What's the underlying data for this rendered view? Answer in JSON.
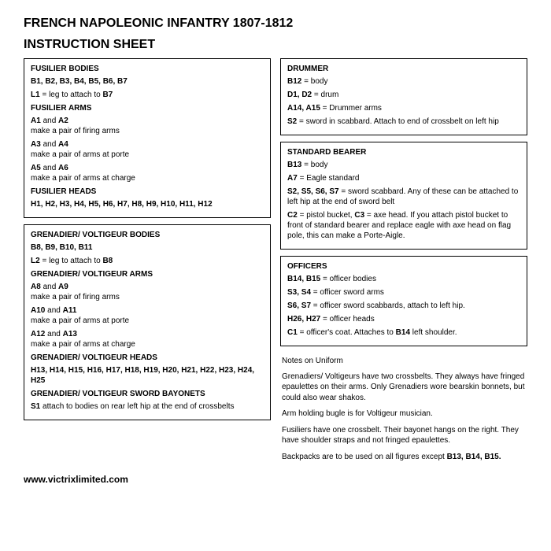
{
  "title1": "FRENCH NAPOLEONIC INFANTRY 1807-1812",
  "title2": "INSTRUCTION SHEET",
  "box1": {
    "h1": "FUSILIER BODIES",
    "p1": "B1, B2, B3, B4, B5, B6, B7",
    "p2a": "L1",
    "p2b": " = leg to attach to ",
    "p2c": "B7",
    "h2": "FUSILIER ARMS",
    "p3a": "A1",
    "p3b": " and ",
    "p3c": "A2",
    "p3d": "make a pair of firing arms",
    "p4a": "A3",
    "p4b": " and ",
    "p4c": "A4",
    "p4d": "make a pair of arms at porte",
    "p5a": "A5",
    "p5b": " and ",
    "p5c": "A6",
    "p5d": "make a pair of arms at charge",
    "h3": "FUSILIER HEADS",
    "p6": "H1, H2, H3, H4, H5, H6, H7, H8, H9, H10, H11, H12"
  },
  "box2": {
    "h1": "GRENADIER/ VOLTIGEUR BODIES",
    "p1": "B8, B9, B10, B11",
    "p2a": "L2",
    "p2b": " = leg to attach to ",
    "p2c": "B8",
    "h2": "GRENADIER/ VOLTIGEUR ARMS",
    "p3a": "A8",
    "p3b": " and ",
    "p3c": "A9",
    "p3d": "make a pair of firing arms",
    "p4a": "A10",
    "p4b": " and ",
    "p4c": "A11",
    "p4d": "make a pair of arms at porte",
    "p5a": "A12",
    "p5b": " and ",
    "p5c": "A13",
    "p5d": "make a pair of arms at charge",
    "h3": "GRENADIER/ VOLTIGEUR HEADS",
    "p6": "H13, H14, H15, H16, H17, H18, H19, H20, H21, H22, H23, H24, H25",
    "h4": "GRENADIER/ VOLTIGEUR SWORD BAYONETS",
    "p7a": "S1",
    "p7b": " attach to bodies on rear left hip at the end of crossbelts"
  },
  "box3": {
    "h1": "DRUMMER",
    "p1a": "B12",
    "p1b": " = body",
    "p2a": "D1, D2",
    "p2b": " = drum",
    "p3a": "A14, A15",
    "p3b": " = Drummer arms",
    "p4a": "S2",
    "p4b": " = sword in scabbard. Attach to end of crossbelt on left hip"
  },
  "box4": {
    "h1": "STANDARD BEARER",
    "p1a": "B13",
    "p1b": " = body",
    "p2a": "A7",
    "p2b": " = Eagle standard",
    "p3a": "S2, S5, S6, S7",
    "p3b": " = sword scabbard. Any of these can be attached to left hip at the end of sword belt",
    "p4a": "C2",
    "p4b": " = pistol bucket, ",
    "p4c": "C3",
    "p4d": " = axe head. If you attach pistol bucket to front of standard bearer and replace eagle with axe head on flag pole, this can make a Porte-Aigle."
  },
  "box5": {
    "h1": "OFFICERS",
    "p1a": "B14, B15",
    "p1b": " = officer bodies",
    "p2a": "S3, S4",
    "p2b": " = officer sword arms",
    "p3a": "S6, S7",
    "p3b": " = officer sword scabbards, attach to left hip.",
    "p4a": "H26, H27",
    "p4b": " = officer heads",
    "p5a": "C1",
    "p5b": " = officer's coat. Attaches to ",
    "p5c": "B14",
    "p5d": " left shoulder."
  },
  "notes": {
    "h": "Notes on Uniform",
    "p1": "Grenadiers/ Voltigeurs have two crossbelts. They always have fringed epaulettes on their arms. Only Grenadiers wore bearskin bonnets, but could also wear shakos.",
    "p2": "Arm holding bugle is for Voltigeur musician.",
    "p3": "Fusiliers have one crossbelt. Their bayonet hangs on the right. They have shoulder straps and not fringed epaulettes.",
    "p4a": "Backpacks are to be used on all figures except ",
    "p4b": "B13, B14, B15."
  },
  "footer": "www.victrixlimited.com"
}
